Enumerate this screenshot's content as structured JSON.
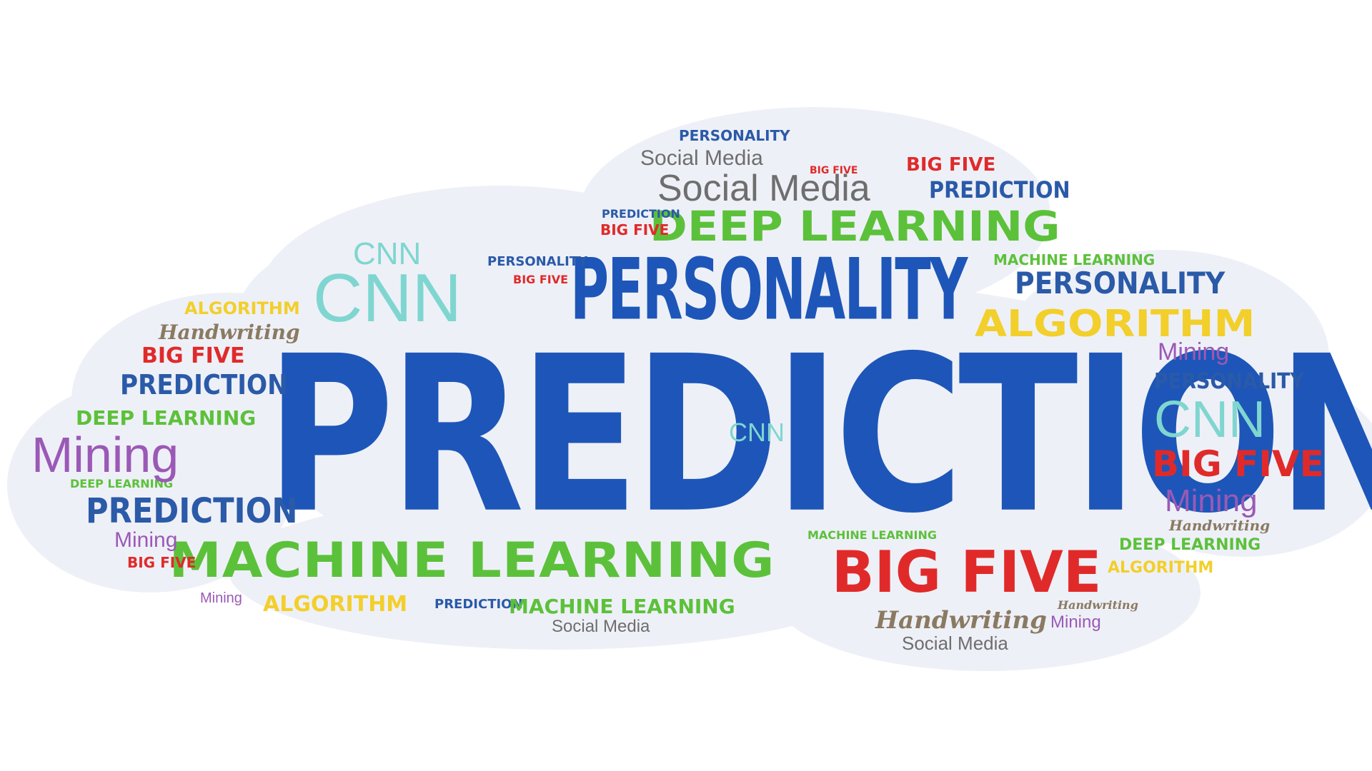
{
  "colors": {
    "blue": "#1d56b8",
    "darkblue": "#2a5aa8",
    "green": "#5cc13a",
    "red": "#e02a2a",
    "yellow": "#f2cf2b",
    "purple": "#9b59b6",
    "gray": "#6e6e6e",
    "brown": "#8a7a62",
    "cyan": "#7fd6d0",
    "cloud_fill": "#eef0f7"
  },
  "words": {
    "prediction_main": "PREDICTION",
    "personality_big": "PERSONALITY",
    "machine_learning_big": "MACHINE LEARNING",
    "big_five_big": "BIG FIVE",
    "deep_learning_big": "DEEP LEARNING",
    "social_media_big": "Social Media",
    "social_media_mid": "Social Media",
    "social_media_bottom": "Social Media",
    "social_media_bottom2": "Social Media",
    "cnn_big": "CNN",
    "cnn_right": "CNN",
    "cnn_mid": "CNN",
    "cnn_small": "CNN",
    "algorithm_right": "ALGORITHM",
    "algorithm_left": "ALGORITHM",
    "algorithm_bottom": "ALGORITHM",
    "algorithm_br": "ALGORITHM",
    "personality_right": "PERSONALITY",
    "personality_right2": "PERSONALITY",
    "personality_top": "PERSONALITY",
    "personality_small": "PERSONALITY",
    "handwriting_left": "Handwriting",
    "handwriting_bottom": "Handwriting",
    "handwriting_right": "Handwriting",
    "handwriting_top": "Handwriting",
    "big_five_left": "BIG FIVE",
    "big_five_right": "BIG FIVE",
    "big_five_top": "BIG FIVE",
    "big_five_small1": "BIG FIVE",
    "big_five_small2": "BIG FIVE",
    "big_five_small3": "BIG FIVE",
    "big_five_small4": "BIG FIVE",
    "prediction_left1": "PREDICTION",
    "prediction_left2": "PREDICTION",
    "prediction_top": "PREDICTION",
    "prediction_small1": "PREDICTION",
    "prediction_small2": "PREDICTION",
    "deep_learning_left": "DEEP LEARNING",
    "deep_learning_right": "DEEP LEARNING",
    "deep_learning_small": "DEEP LEARNING",
    "mining_left": "Mining",
    "mining_right1": "Mining",
    "mining_right2": "Mining",
    "mining_left2": "Mining",
    "mining_bottom": "Mining",
    "mining_br": "Mining",
    "machine_learning_bottom": "MACHINE LEARNING",
    "machine_learning_top": "MACHINE LEARNING",
    "machine_learning_small": "MACHINE LEARNING"
  }
}
